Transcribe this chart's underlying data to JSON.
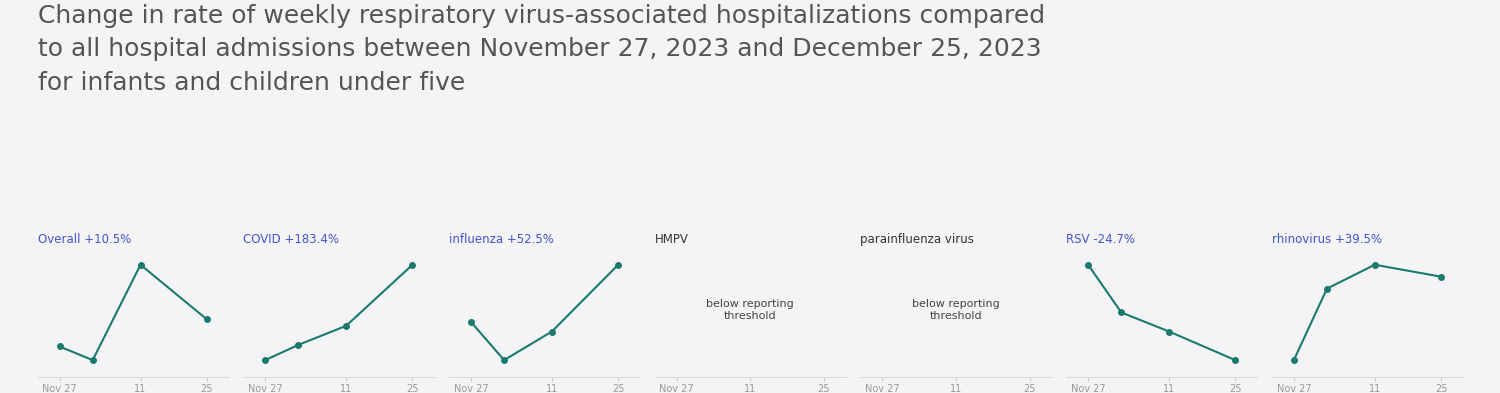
{
  "title": "Change in rate of weekly respiratory virus-associated hospitalizations compared\nto all hospital admissions between November 27, 2023 and December 25, 2023\nfor infants and children under five",
  "title_fontsize": 18,
  "title_color": "#555555",
  "background_color": "#f4f4f6",
  "line_color": "#1a7a6e",
  "marker_color": "#1a7a6e",
  "label_color": "#4455cc",
  "below_label_color": "#333333",
  "x_tick_labels": [
    "Nov 27",
    "11",
    "25"
  ],
  "x_positions": [
    0,
    1,
    2
  ],
  "panels": [
    {
      "label": "Overall +10.5%",
      "y": [
        2.5,
        2.0,
        5.5,
        3.5
      ],
      "x": [
        0,
        0.45,
        1.1,
        2
      ],
      "below_threshold": false
    },
    {
      "label": "COVID +183.4%",
      "y": [
        1.0,
        1.8,
        2.8,
        6.0
      ],
      "x": [
        0,
        0.45,
        1.1,
        2
      ],
      "below_threshold": false
    },
    {
      "label": "influenza +52.5%",
      "y": [
        3.0,
        1.0,
        2.5,
        6.0
      ],
      "x": [
        0,
        0.45,
        1.1,
        2
      ],
      "below_threshold": false
    },
    {
      "label": "HMPV",
      "y": null,
      "x": null,
      "below_threshold": true
    },
    {
      "label": "parainfluenza virus",
      "y": null,
      "x": null,
      "below_threshold": true
    },
    {
      "label": "RSV -24.7%",
      "y": [
        6.0,
        3.5,
        2.5,
        1.0
      ],
      "x": [
        0,
        0.45,
        1.1,
        2
      ],
      "below_threshold": false
    },
    {
      "label": "rhinovirus +39.5%",
      "y": [
        1.5,
        4.5,
        5.5,
        5.0
      ],
      "x": [
        0,
        0.45,
        1.1,
        2
      ],
      "below_threshold": false
    }
  ]
}
